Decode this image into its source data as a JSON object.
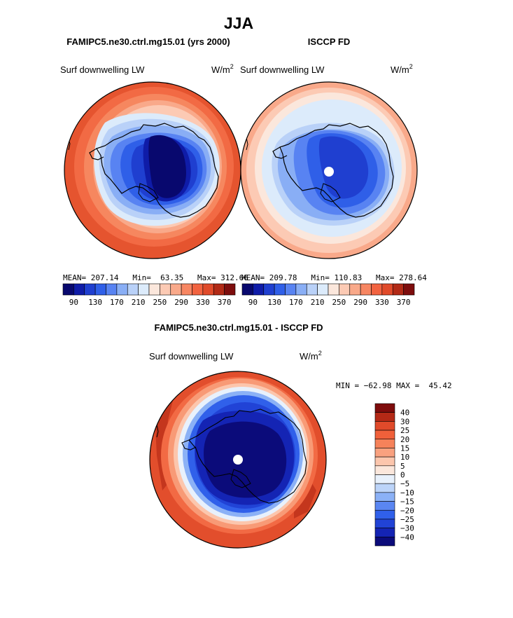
{
  "page": {
    "title": "JJA",
    "diff_title": "FAMIPC5.ne30.ctrl.mg15.01 - ISCCP FD"
  },
  "palettes": {
    "full": [
      "#08086e",
      "#0f1ca8",
      "#1f3fd0",
      "#2f5fe8",
      "#5883f2",
      "#89aef5",
      "#b9d1f8",
      "#dcebfb",
      "#fbe7dc",
      "#fccab4",
      "#f9a98a",
      "#f78662",
      "#f26340",
      "#e04a2a",
      "#b22a16",
      "#7d0d0d"
    ],
    "diff": [
      "#0b0b7a",
      "#1424b4",
      "#2143d6",
      "#3060ea",
      "#5a86f2",
      "#8bb1f6",
      "#bcd4f9",
      "#e8f1fc",
      "#fbe7dc",
      "#fcc6ad",
      "#f9a17f",
      "#f6825a",
      "#f0603a",
      "#e04a2a",
      "#b42916",
      "#7e0c0c"
    ]
  },
  "panels": [
    {
      "model": "FAMIPC5.ne30.ctrl.mg15.01 (yrs 2000)",
      "variable": "Surf downwelling LW",
      "units": "W/m",
      "units_exp": "2",
      "stats": "MEAN= 207.14   Min=  63.35   Max= 312.66",
      "colorbar_labels": [
        "90",
        "130",
        "170",
        "210",
        "250",
        "290",
        "330",
        "370"
      ]
    },
    {
      "model": "ISCCP FD",
      "variable": "Surf downwelling LW",
      "units": "W/m",
      "units_exp": "2",
      "stats": "MEAN= 209.78   Min= 110.83   Max= 278.64",
      "colorbar_labels": [
        "90",
        "130",
        "170",
        "210",
        "250",
        "290",
        "330",
        "370"
      ]
    }
  ],
  "diff": {
    "variable": "Surf downwelling LW",
    "units": "W/m",
    "units_exp": "2",
    "stats": "MIN = −62.98 MAX =  45.42",
    "colorbar_labels": [
      "40",
      "30",
      "25",
      "20",
      "15",
      "10",
      "5",
      "0",
      "−5",
      "−10",
      "−15",
      "−20",
      "−25",
      "−30",
      "−40"
    ]
  },
  "chart_data": [
    {
      "type": "heatmap",
      "projection": "south-polar-stereographic",
      "title": "FAMIPC5.ne30.ctrl.mg15.01 (yrs 2000)",
      "variable": "Surf downwelling LW",
      "units": "W/m^2",
      "stats": {
        "mean": 207.14,
        "min": 63.35,
        "max": 312.66
      },
      "contour_levels": [
        90,
        110,
        130,
        150,
        170,
        190,
        210,
        230,
        250,
        270,
        290,
        310,
        330,
        350,
        370
      ],
      "colorbar_ticks": [
        90,
        130,
        170,
        210,
        250,
        290,
        330,
        370
      ]
    },
    {
      "type": "heatmap",
      "projection": "south-polar-stereographic",
      "title": "ISCCP FD",
      "variable": "Surf downwelling LW",
      "units": "W/m^2",
      "stats": {
        "mean": 209.78,
        "min": 110.83,
        "max": 278.64
      },
      "contour_levels": [
        90,
        110,
        130,
        150,
        170,
        190,
        210,
        230,
        250,
        270,
        290,
        310,
        330,
        350,
        370
      ],
      "colorbar_ticks": [
        90,
        130,
        170,
        210,
        250,
        290,
        330,
        370
      ]
    },
    {
      "type": "heatmap",
      "projection": "south-polar-stereographic",
      "title": "FAMIPC5.ne30.ctrl.mg15.01 - ISCCP FD",
      "variable": "Surf downwelling LW",
      "units": "W/m^2",
      "stats": {
        "min": -62.98,
        "max": 45.42
      },
      "contour_levels": [
        -40,
        -30,
        -25,
        -20,
        -15,
        -10,
        -5,
        0,
        5,
        10,
        15,
        20,
        25,
        30,
        40
      ],
      "colorbar_ticks": [
        40,
        30,
        25,
        20,
        15,
        10,
        5,
        0,
        -5,
        -10,
        -15,
        -20,
        -25,
        -30,
        -40
      ]
    }
  ]
}
